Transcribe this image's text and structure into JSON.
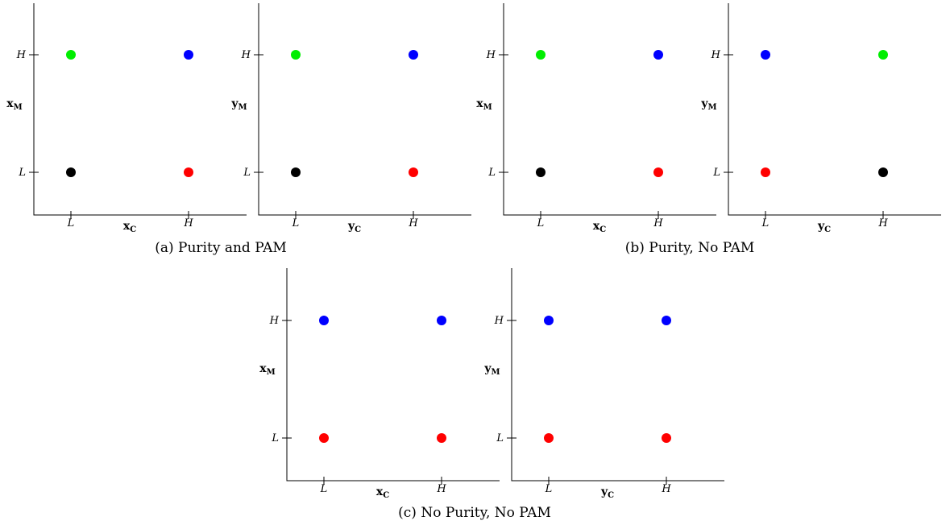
{
  "colors": {
    "black": "#000000",
    "red": "#ff0000",
    "green": "#00ee00",
    "blue": "#0000ff"
  },
  "chart_data": [
    {
      "type": "scatter",
      "panel": "a",
      "xlabel": "x",
      "xlabel_sub": "C",
      "ylabel": "x",
      "ylabel_sub": "M",
      "xticks": [
        "L",
        "H"
      ],
      "yticks": [
        "L",
        "H"
      ],
      "points": [
        {
          "x": "L",
          "y": "L",
          "color": "black"
        },
        {
          "x": "H",
          "y": "L",
          "color": "red"
        },
        {
          "x": "L",
          "y": "H",
          "color": "green"
        },
        {
          "x": "H",
          "y": "H",
          "color": "blue"
        }
      ]
    },
    {
      "type": "scatter",
      "panel": "a",
      "xlabel": "y",
      "xlabel_sub": "C",
      "ylabel": "y",
      "ylabel_sub": "M",
      "xticks": [
        "L",
        "H"
      ],
      "yticks": [
        "L",
        "H"
      ],
      "points": [
        {
          "x": "L",
          "y": "L",
          "color": "black"
        },
        {
          "x": "H",
          "y": "L",
          "color": "red"
        },
        {
          "x": "L",
          "y": "H",
          "color": "green"
        },
        {
          "x": "H",
          "y": "H",
          "color": "blue"
        }
      ]
    },
    {
      "type": "scatter",
      "panel": "b",
      "xlabel": "x",
      "xlabel_sub": "C",
      "ylabel": "x",
      "ylabel_sub": "M",
      "xticks": [
        "L",
        "H"
      ],
      "yticks": [
        "L",
        "H"
      ],
      "points": [
        {
          "x": "L",
          "y": "L",
          "color": "black"
        },
        {
          "x": "H",
          "y": "L",
          "color": "red"
        },
        {
          "x": "L",
          "y": "H",
          "color": "green"
        },
        {
          "x": "H",
          "y": "H",
          "color": "blue"
        }
      ]
    },
    {
      "type": "scatter",
      "panel": "b",
      "xlabel": "y",
      "xlabel_sub": "C",
      "ylabel": "y",
      "ylabel_sub": "M",
      "xticks": [
        "L",
        "H"
      ],
      "yticks": [
        "L",
        "H"
      ],
      "points": [
        {
          "x": "L",
          "y": "L",
          "color": "red"
        },
        {
          "x": "H",
          "y": "L",
          "color": "black"
        },
        {
          "x": "L",
          "y": "H",
          "color": "blue"
        },
        {
          "x": "H",
          "y": "H",
          "color": "green"
        }
      ]
    },
    {
      "type": "scatter",
      "panel": "c",
      "xlabel": "x",
      "xlabel_sub": "C",
      "ylabel": "x",
      "ylabel_sub": "M",
      "xticks": [
        "L",
        "H"
      ],
      "yticks": [
        "L",
        "H"
      ],
      "points": [
        {
          "x": "L",
          "y": "L",
          "color": "red"
        },
        {
          "x": "H",
          "y": "L",
          "color": "red"
        },
        {
          "x": "L",
          "y": "H",
          "color": "blue"
        },
        {
          "x": "H",
          "y": "H",
          "color": "blue"
        }
      ]
    },
    {
      "type": "scatter",
      "panel": "c",
      "xlabel": "y",
      "xlabel_sub": "C",
      "ylabel": "y",
      "ylabel_sub": "M",
      "xticks": [
        "L",
        "H"
      ],
      "yticks": [
        "L",
        "H"
      ],
      "points": [
        {
          "x": "L",
          "y": "L",
          "color": "red"
        },
        {
          "x": "H",
          "y": "L",
          "color": "red"
        },
        {
          "x": "L",
          "y": "H",
          "color": "blue"
        },
        {
          "x": "H",
          "y": "H",
          "color": "blue"
        }
      ]
    }
  ],
  "captions": {
    "a": "(a) Purity and PAM",
    "b": "(b) Purity, No PAM",
    "c": "(c) No Purity, No PAM"
  }
}
